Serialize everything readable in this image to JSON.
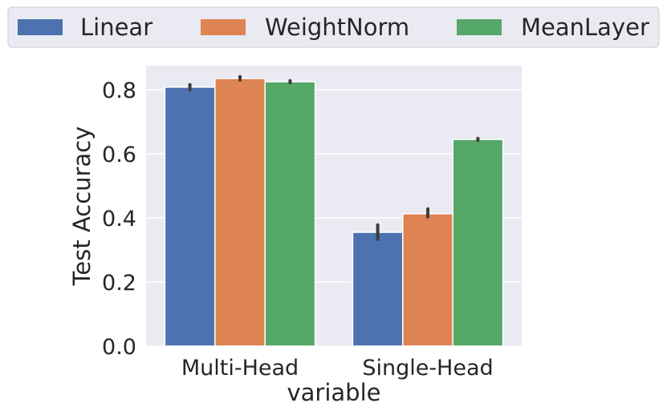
{
  "chart_data": {
    "type": "bar",
    "categories": [
      "Multi-Head",
      "Single-Head"
    ],
    "series": [
      {
        "name": "Linear",
        "color": "#4c72b0",
        "values": [
          0.808,
          0.355
        ],
        "err_low": [
          0.8,
          0.333
        ],
        "err_high": [
          0.816,
          0.378
        ]
      },
      {
        "name": "WeightNorm",
        "color": "#dd8452",
        "values": [
          0.835,
          0.413
        ],
        "err_low": [
          0.83,
          0.403
        ],
        "err_high": [
          0.841,
          0.428
        ]
      },
      {
        "name": "MeanLayer",
        "color": "#55a868",
        "values": [
          0.825,
          0.645
        ],
        "err_low": [
          0.822,
          0.642
        ],
        "err_high": [
          0.828,
          0.648
        ]
      }
    ],
    "xlabel": "variable",
    "ylabel": "Test Accuracy",
    "ylim": [
      0,
      0.875
    ],
    "yticks": [
      "0.0",
      "0.2",
      "0.4",
      "0.6",
      "0.8"
    ],
    "grid": true,
    "legend_position": "top"
  }
}
